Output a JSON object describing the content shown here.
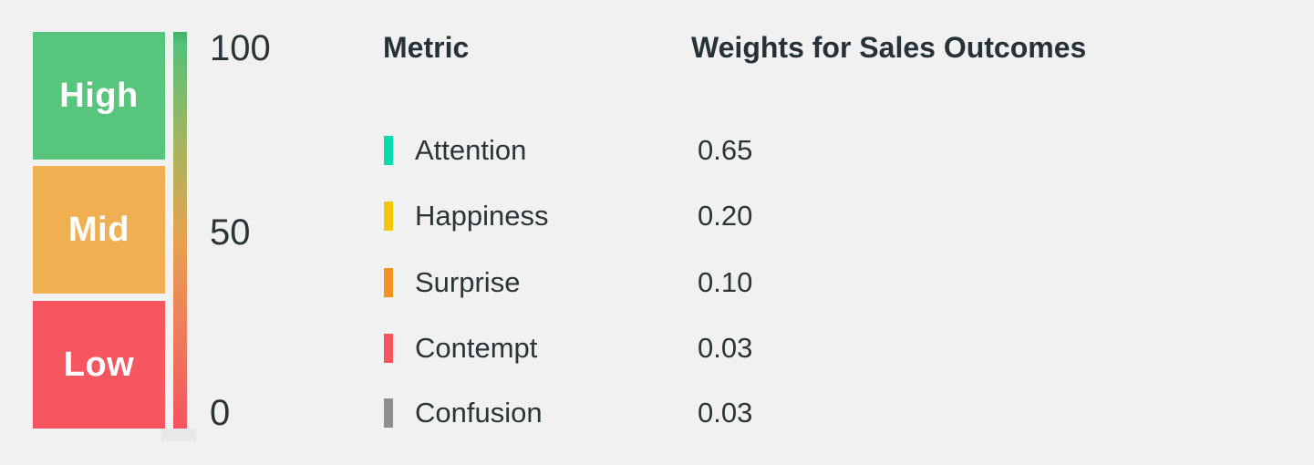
{
  "background_color": "#f1f1f2",
  "text_color": "#2a3538",
  "scale": {
    "levels": [
      {
        "label": "High",
        "color": "#58c57d"
      },
      {
        "label": "Mid",
        "color": "#f0b052"
      },
      {
        "label": "Low",
        "color": "#f6565f"
      }
    ],
    "ticks": [
      {
        "label": "100"
      },
      {
        "label": "50"
      },
      {
        "label": "0"
      }
    ],
    "gradient_stops": [
      {
        "color": "#3fb166",
        "pos": "0%"
      },
      {
        "color": "#55c179",
        "pos": "3%"
      },
      {
        "color": "#aab45c",
        "pos": "30%"
      },
      {
        "color": "#e6a24e",
        "pos": "52%"
      },
      {
        "color": "#f0795b",
        "pos": "78%"
      },
      {
        "color": "#f4535f",
        "pos": "100%"
      }
    ]
  },
  "table": {
    "header_metric": "Metric",
    "header_weights": "Weights for Sales Outcomes",
    "rows": [
      {
        "metric": "Attention",
        "weight": "0.65",
        "color": "#0adbab"
      },
      {
        "metric": "Happiness",
        "weight": "0.20",
        "color": "#f3c60a"
      },
      {
        "metric": "Surprise",
        "weight": "0.10",
        "color": "#f2921f"
      },
      {
        "metric": "Contempt",
        "weight": "0.03",
        "color": "#f4565f"
      },
      {
        "metric": "Confusion",
        "weight": "0.03",
        "color": "#8e8e8e"
      }
    ]
  },
  "chart_data": {
    "type": "table",
    "title": "Weights for Sales Outcomes",
    "columns": [
      "Metric",
      "Weights for Sales Outcomes"
    ],
    "rows": [
      [
        "Attention",
        0.65
      ],
      [
        "Happiness",
        0.2
      ],
      [
        "Surprise",
        0.1
      ],
      [
        "Contempt",
        0.03
      ],
      [
        "Confusion",
        0.03
      ]
    ],
    "scale": {
      "type": "gauge",
      "range": [
        0,
        100
      ],
      "ticks": [
        100,
        50,
        0
      ],
      "bands": [
        "High",
        "Mid",
        "Low"
      ],
      "legend_position": "left",
      "grid": false
    }
  }
}
